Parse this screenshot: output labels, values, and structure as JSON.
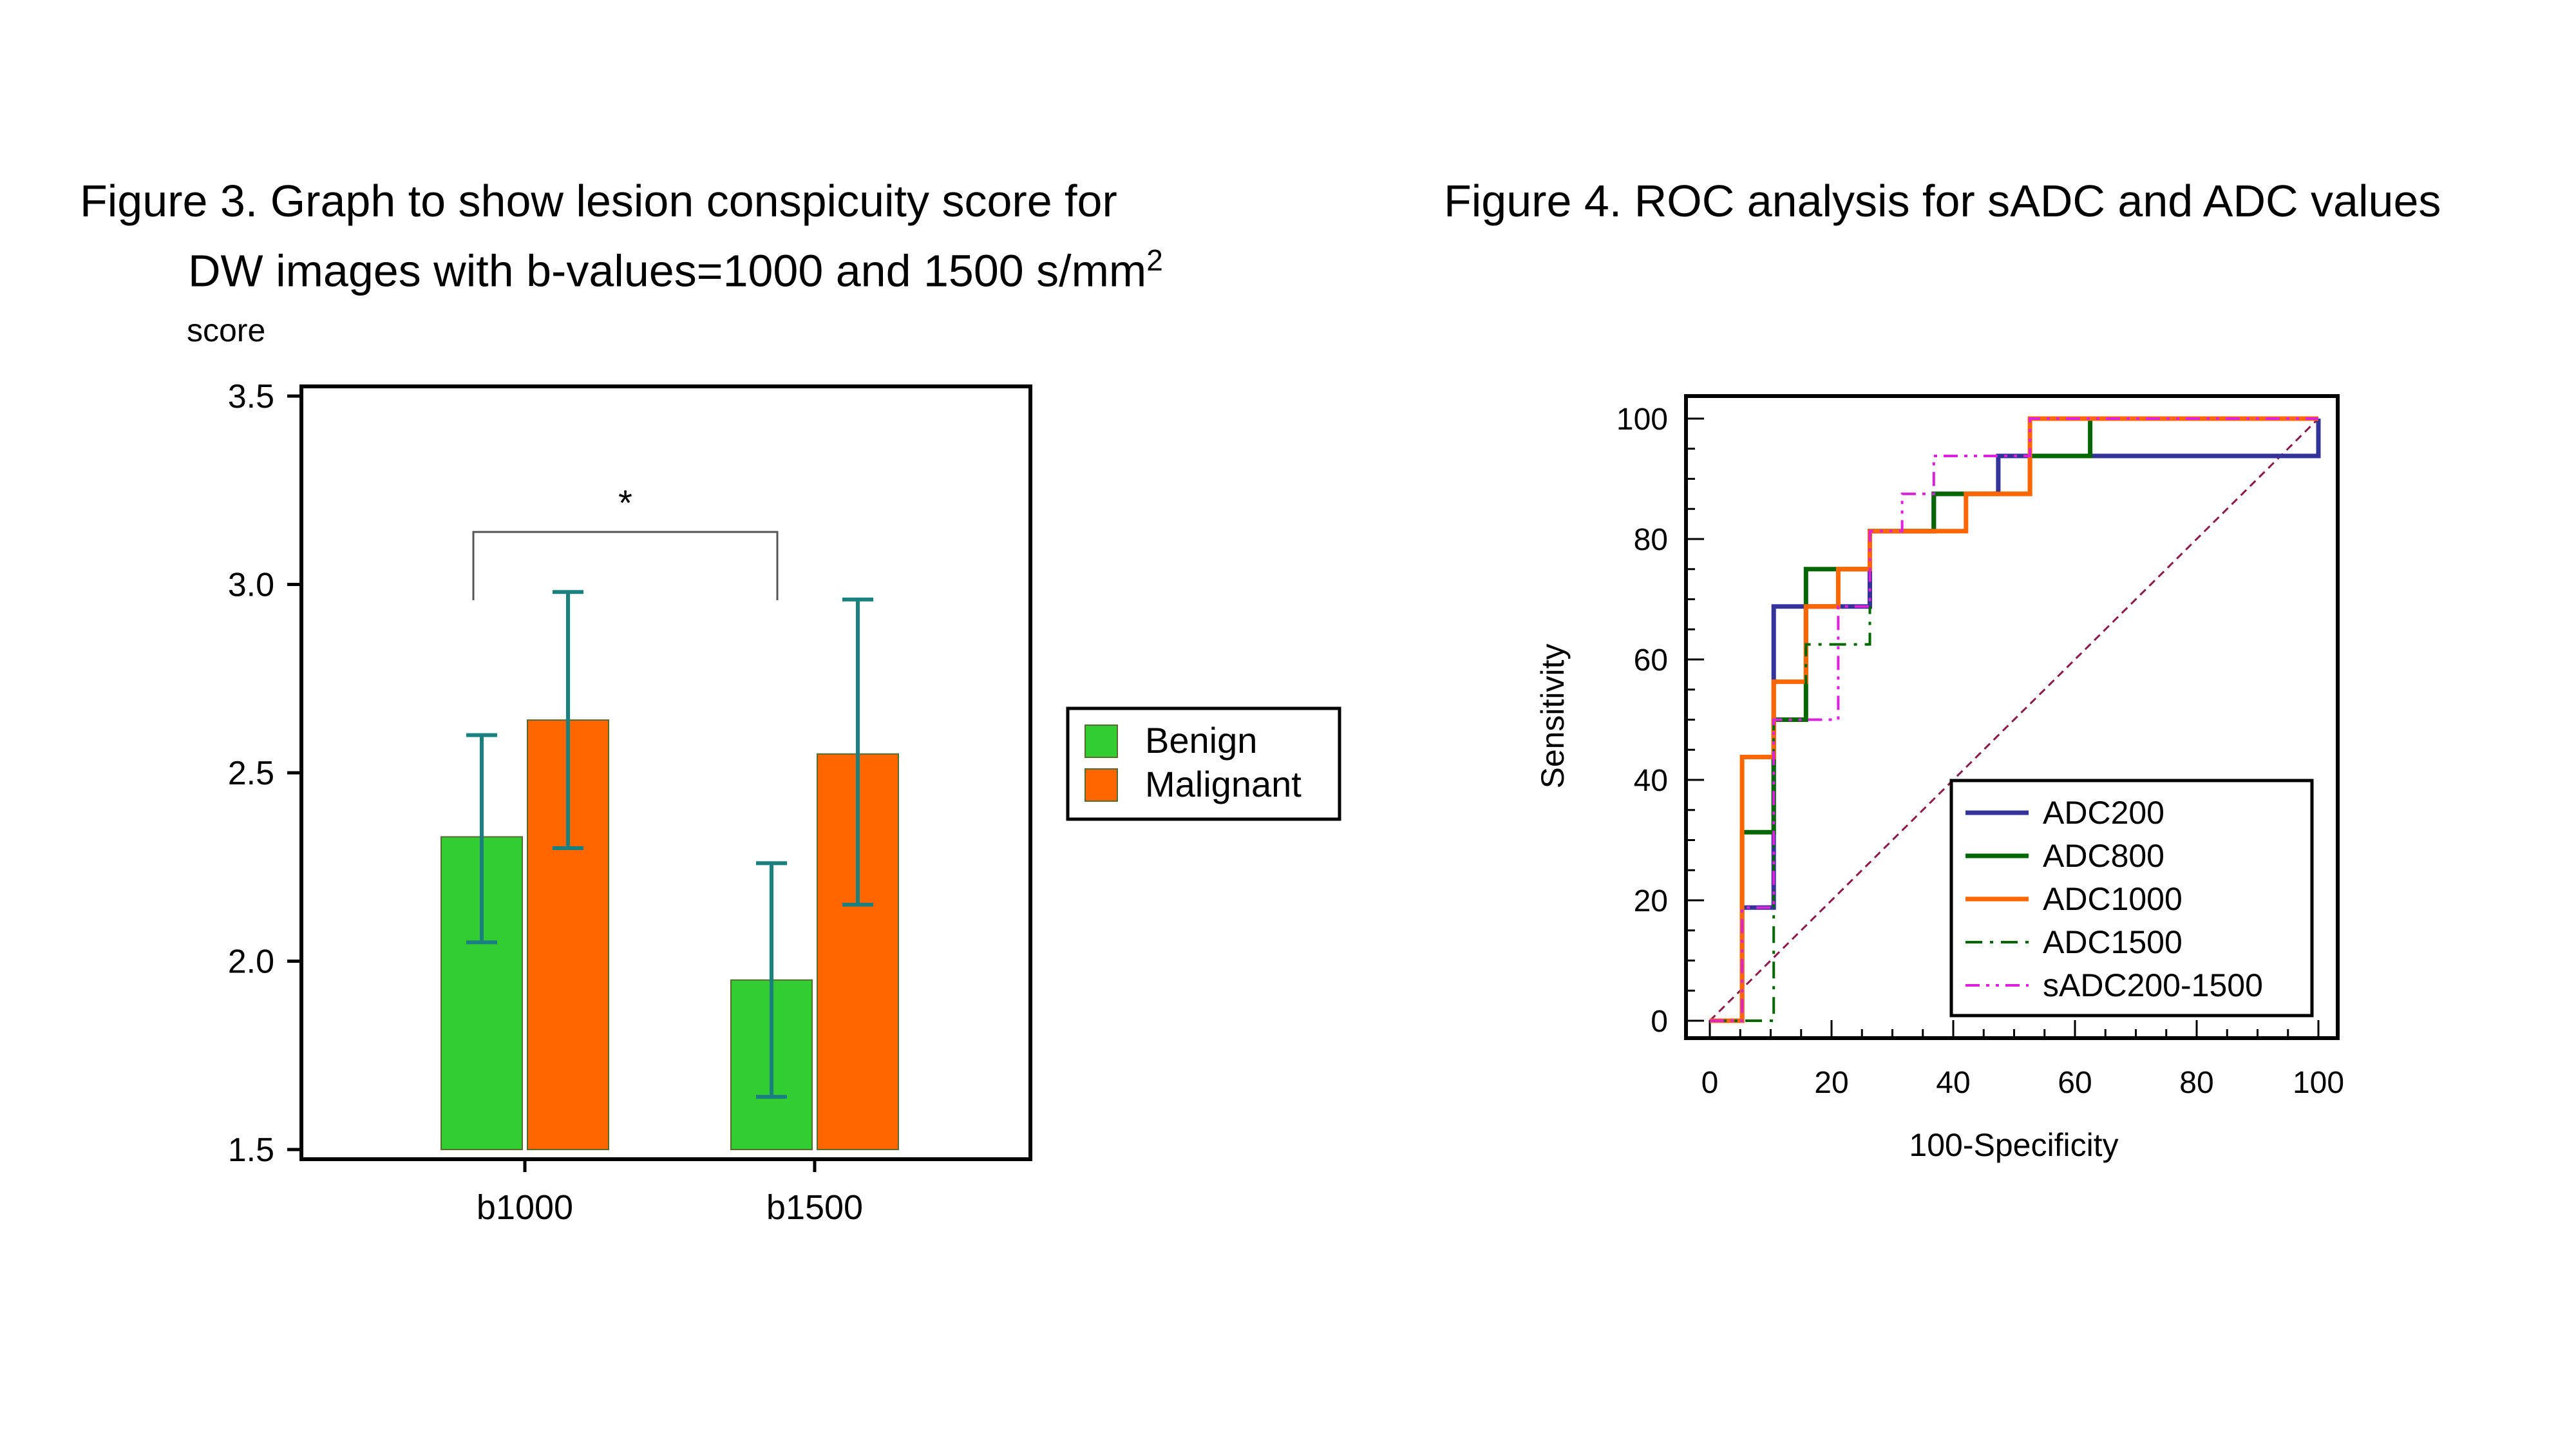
{
  "figure3": {
    "caption_label": "Figure 3.",
    "caption_line1": "Graph to show lesion conspicuity score for",
    "caption_line2": "DW images with b-values=1000 and 1500 s/mm",
    "caption_sup": "2"
  },
  "figure4": {
    "caption_label": "Figure 4.",
    "caption_text": "ROC analysis for sADC and ADC values"
  },
  "chart_data": [
    {
      "type": "bar",
      "title": "",
      "ylabel": "score",
      "xlabel": "",
      "categories": [
        "b1000",
        "b1500"
      ],
      "ylim": [
        1.5,
        3.5
      ],
      "yticks": [
        "1.5",
        "2.0",
        "2.5",
        "3.0",
        "3.5"
      ],
      "series": [
        {
          "name": "Benign",
          "color": "#33cc33",
          "values": [
            2.33,
            1.95
          ],
          "error_low": [
            2.05,
            1.64
          ],
          "error_high": [
            2.6,
            2.26
          ]
        },
        {
          "name": "Malignant",
          "color": "#ff6600",
          "values": [
            2.64,
            2.55
          ],
          "error_low": [
            2.3,
            2.15
          ],
          "error_high": [
            2.98,
            2.96
          ]
        }
      ],
      "error_color": "#1a7f7f",
      "significance": {
        "label": "*",
        "between": [
          "b1000",
          "b1500"
        ]
      },
      "legend": "right",
      "grid": false
    },
    {
      "type": "line",
      "title": "",
      "xlabel": "100-Specificity",
      "ylabel": "Sensitivity",
      "xlim": [
        0,
        100
      ],
      "ylim": [
        0,
        100
      ],
      "xticks": [
        "0",
        "20",
        "40",
        "60",
        "80",
        "100"
      ],
      "yticks": [
        "0",
        "20",
        "40",
        "60",
        "80",
        "100"
      ],
      "legend": "bottom-right",
      "grid": false,
      "diagonal_color": "#8b1a4a",
      "series": [
        {
          "name": "ADC200",
          "color": "#333399",
          "dash": "solid",
          "x": [
            0,
            5.3,
            5.3,
            10.5,
            10.5,
            26.3,
            26.3,
            36.8,
            36.8,
            47.4,
            47.4,
            100,
            100
          ],
          "y": [
            0,
            0,
            18.8,
            18.8,
            68.8,
            68.8,
            81.3,
            81.3,
            87.5,
            87.5,
            93.8,
            93.8,
            100
          ]
        },
        {
          "name": "ADC800",
          "color": "#006600",
          "dash": "solid",
          "x": [
            0,
            5.3,
            5.3,
            10.5,
            10.5,
            15.8,
            15.8,
            26.3,
            26.3,
            36.8,
            36.8,
            52.6,
            52.6,
            62.5,
            62.5,
            100
          ],
          "y": [
            0,
            0,
            31.3,
            31.3,
            50,
            50,
            75,
            75,
            81.3,
            81.3,
            87.5,
            87.5,
            93.8,
            93.8,
            100,
            100
          ]
        },
        {
          "name": "ADC1000",
          "color": "#ff6600",
          "dash": "solid",
          "x": [
            0,
            5.3,
            5.3,
            10.5,
            10.5,
            15.8,
            15.8,
            21.1,
            21.1,
            26.3,
            26.3,
            31.6,
            31.6,
            42.1,
            42.1,
            52.6,
            52.6,
            100
          ],
          "y": [
            0,
            0,
            43.8,
            43.8,
            56.3,
            56.3,
            68.8,
            68.8,
            75,
            75,
            81.3,
            81.3,
            81.3,
            81.3,
            87.5,
            87.5,
            100,
            100
          ]
        },
        {
          "name": "ADC1500",
          "color": "#006600",
          "dash": "dashdot",
          "x": [
            0,
            10.5,
            10.5,
            15.8,
            15.8,
            21.1,
            21.1,
            26.3,
            26.3
          ],
          "y": [
            0,
            0,
            50,
            50,
            62.5,
            62.5,
            62.5,
            62.5,
            68.8
          ]
        },
        {
          "name": "sADC200-1500",
          "color": "#dd22dd",
          "dash": "dashdotdot",
          "x": [
            0,
            5.3,
            5.3,
            10.5,
            10.5,
            21.1,
            21.1,
            26.3,
            26.3,
            31.6,
            31.6,
            36.8,
            36.8,
            52.6,
            52.6,
            100
          ],
          "y": [
            0,
            0,
            18.8,
            18.8,
            50,
            50,
            68.8,
            68.8,
            81.3,
            81.3,
            87.5,
            87.5,
            93.8,
            93.8,
            100,
            100
          ]
        }
      ]
    }
  ]
}
